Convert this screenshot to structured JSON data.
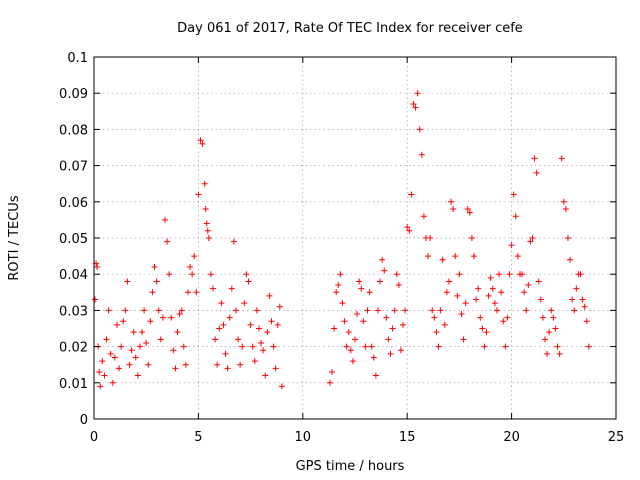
{
  "chart_data": {
    "type": "scatter",
    "title": "Day 061 of 2017, Rate Of TEC Index for receiver cefe",
    "xlabel": "GPS time / hours",
    "ylabel": "ROTI / TECUs",
    "xlim": [
      0,
      25
    ],
    "ylim": [
      0,
      0.1
    ],
    "x_ticks": [
      "0",
      "5",
      "10",
      "15",
      "20",
      "25"
    ],
    "y_ticks": [
      "0",
      "0.01",
      "0.02",
      "0.03",
      "0.04",
      "0.05",
      "0.06",
      "0.07",
      "0.08",
      "0.09",
      "0.1"
    ],
    "x_tick_values": [
      0,
      5,
      10,
      15,
      20,
      25
    ],
    "y_tick_values": [
      0,
      0.01,
      0.02,
      0.03,
      0.04,
      0.05,
      0.06,
      0.07,
      0.08,
      0.09,
      0.1
    ],
    "grid": true,
    "marker": "plus",
    "colors": {
      "series": "#ff0000",
      "grid": "#a0a0a0",
      "axes": "#000000"
    },
    "series": [
      {
        "x": [
          0.05,
          0.1,
          0.15,
          0.2,
          0.25,
          0.3,
          0.4,
          0.5,
          0.6,
          0.7,
          0.8,
          0.9,
          1.0,
          1.1,
          1.2,
          1.3,
          1.4,
          1.5,
          1.6,
          1.7,
          1.8,
          1.9,
          2.0,
          2.1,
          2.2,
          2.3,
          2.4,
          2.5,
          2.6,
          2.7,
          2.8,
          2.9,
          3.0,
          3.1,
          3.2,
          3.3,
          3.4,
          3.5,
          3.6,
          3.7,
          3.8,
          3.9,
          4.0,
          4.1,
          4.2,
          4.3,
          4.4,
          4.5,
          4.6,
          4.7,
          4.8,
          4.9,
          5.0,
          5.1,
          5.2,
          5.3,
          5.35,
          5.4,
          5.45,
          5.5,
          5.6,
          5.7,
          5.8,
          5.9,
          6.0,
          6.1,
          6.2,
          6.3,
          6.4,
          6.5,
          6.6,
          6.7,
          6.8,
          6.9,
          7.0,
          7.1,
          7.2,
          7.3,
          7.4,
          7.5,
          7.6,
          7.7,
          7.8,
          7.9,
          8.0,
          8.1,
          8.2,
          8.3,
          8.4,
          8.5,
          8.6,
          8.7,
          8.8,
          8.9,
          9.0,
          11.3,
          11.4,
          11.5,
          11.6,
          11.7,
          11.8,
          11.9,
          12.0,
          12.1,
          12.2,
          12.3,
          12.4,
          12.5,
          12.6,
          12.7,
          12.8,
          12.9,
          13.0,
          13.1,
          13.2,
          13.3,
          13.4,
          13.5,
          13.6,
          13.7,
          13.8,
          13.9,
          14.0,
          14.1,
          14.2,
          14.3,
          14.4,
          14.5,
          14.6,
          14.7,
          14.8,
          14.9,
          15.0,
          15.1,
          15.2,
          15.3,
          15.4,
          15.5,
          15.6,
          15.7,
          15.8,
          15.9,
          16.0,
          16.1,
          16.2,
          16.3,
          16.4,
          16.5,
          16.6,
          16.7,
          16.8,
          16.9,
          17.0,
          17.1,
          17.2,
          17.3,
          17.4,
          17.5,
          17.6,
          17.7,
          17.8,
          17.9,
          18.0,
          18.1,
          18.2,
          18.3,
          18.4,
          18.5,
          18.6,
          18.7,
          18.8,
          18.9,
          19.0,
          19.1,
          19.2,
          19.3,
          19.4,
          19.5,
          19.6,
          19.7,
          19.8,
          19.9,
          20.0,
          20.1,
          20.2,
          20.3,
          20.4,
          20.5,
          20.6,
          20.7,
          20.8,
          20.9,
          21.0,
          21.1,
          21.2,
          21.3,
          21.4,
          21.5,
          21.6,
          21.7,
          21.8,
          21.9,
          22.0,
          22.1,
          22.2,
          22.3,
          22.4,
          22.5,
          22.6,
          22.7,
          22.8,
          22.9,
          23.0,
          23.1,
          23.2,
          23.3,
          23.4,
          23.5,
          23.6,
          23.7
        ],
        "y": [
          0.033,
          0.043,
          0.042,
          0.02,
          0.013,
          0.009,
          0.016,
          0.012,
          0.022,
          0.03,
          0.018,
          0.01,
          0.017,
          0.026,
          0.014,
          0.02,
          0.027,
          0.03,
          0.038,
          0.015,
          0.019,
          0.024,
          0.017,
          0.012,
          0.02,
          0.024,
          0.03,
          0.021,
          0.015,
          0.027,
          0.035,
          0.042,
          0.038,
          0.03,
          0.022,
          0.028,
          0.055,
          0.049,
          0.04,
          0.028,
          0.019,
          0.014,
          0.024,
          0.029,
          0.03,
          0.02,
          0.015,
          0.035,
          0.042,
          0.04,
          0.045,
          0.035,
          0.062,
          0.077,
          0.076,
          0.065,
          0.058,
          0.054,
          0.052,
          0.05,
          0.04,
          0.036,
          0.022,
          0.015,
          0.025,
          0.032,
          0.026,
          0.018,
          0.014,
          0.028,
          0.036,
          0.049,
          0.03,
          0.022,
          0.015,
          0.02,
          0.032,
          0.04,
          0.038,
          0.026,
          0.02,
          0.016,
          0.03,
          0.025,
          0.021,
          0.019,
          0.012,
          0.024,
          0.034,
          0.027,
          0.02,
          0.014,
          0.026,
          0.031,
          0.009,
          0.01,
          0.013,
          0.025,
          0.035,
          0.037,
          0.04,
          0.032,
          0.027,
          0.02,
          0.024,
          0.019,
          0.016,
          0.022,
          0.029,
          0.038,
          0.036,
          0.027,
          0.02,
          0.03,
          0.035,
          0.02,
          0.017,
          0.012,
          0.03,
          0.038,
          0.044,
          0.041,
          0.028,
          0.022,
          0.018,
          0.025,
          0.03,
          0.04,
          0.037,
          0.019,
          0.026,
          0.03,
          0.053,
          0.052,
          0.062,
          0.087,
          0.086,
          0.09,
          0.08,
          0.073,
          0.056,
          0.05,
          0.045,
          0.05,
          0.03,
          0.028,
          0.024,
          0.02,
          0.03,
          0.044,
          0.026,
          0.035,
          0.038,
          0.06,
          0.058,
          0.045,
          0.034,
          0.04,
          0.029,
          0.022,
          0.032,
          0.058,
          0.057,
          0.05,
          0.045,
          0.033,
          0.036,
          0.028,
          0.025,
          0.02,
          0.024,
          0.034,
          0.039,
          0.036,
          0.032,
          0.03,
          0.04,
          0.035,
          0.027,
          0.02,
          0.028,
          0.04,
          0.048,
          0.062,
          0.056,
          0.045,
          0.04,
          0.04,
          0.035,
          0.03,
          0.037,
          0.049,
          0.05,
          0.072,
          0.068,
          0.038,
          0.033,
          0.028,
          0.022,
          0.018,
          0.024,
          0.03,
          0.028,
          0.025,
          0.02,
          0.018,
          0.072,
          0.06,
          0.058,
          0.05,
          0.044,
          0.033,
          0.03,
          0.036,
          0.04,
          0.04,
          0.033,
          0.031,
          0.027,
          0.02
        ]
      }
    ]
  }
}
